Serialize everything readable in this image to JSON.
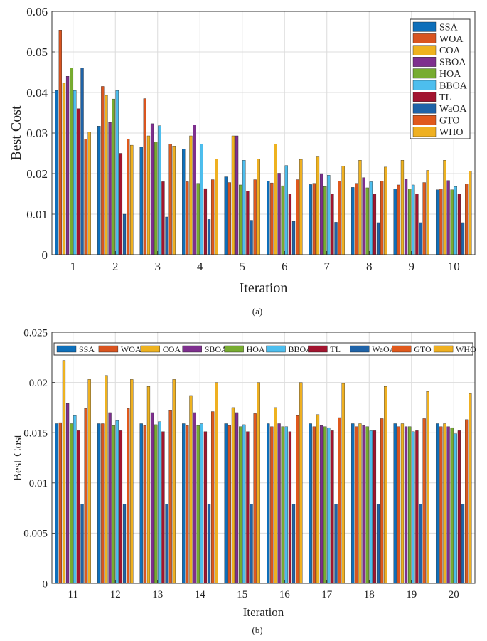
{
  "colors": {
    "SSA": "#0e6fba",
    "WOA": "#d9541f",
    "COA": "#eeb21f",
    "SBOA": "#7e2f8e",
    "HOA": "#77ac30",
    "BBOA": "#4dbeee",
    "TL": "#a2142f",
    "WaOA": "#1f63a8",
    "GTO": "#e0591c",
    "WHO": "#efb021"
  },
  "chart_data": [
    {
      "type": "bar",
      "caption": "(a)",
      "xlabel": "Iteration",
      "ylabel": "Best Cost",
      "ylim": [
        0,
        0.06
      ],
      "yticks": [
        "0",
        "0.01",
        "0.02",
        "0.03",
        "0.04",
        "0.05",
        "0.06"
      ],
      "grid": true,
      "legend_position": "top-right",
      "legend_layout": "vertical",
      "categories": [
        "1",
        "2",
        "3",
        "4",
        "5",
        "6",
        "7",
        "8",
        "9",
        "10"
      ],
      "series": [
        {
          "name": "SSA",
          "values": [
            0.0405,
            0.0317,
            0.0265,
            0.026,
            0.0192,
            0.0182,
            0.0173,
            0.0166,
            0.0162,
            0.016
          ]
        },
        {
          "name": "WOA",
          "values": [
            0.0554,
            0.0415,
            0.0385,
            0.018,
            0.0178,
            0.0177,
            0.0176,
            0.0176,
            0.0172,
            0.0162
          ]
        },
        {
          "name": "COA",
          "values": [
            0.0423,
            0.0393,
            0.0293,
            0.0293,
            0.0293,
            0.0273,
            0.0243,
            0.0233,
            0.0233,
            0.0233
          ]
        },
        {
          "name": "SBOA",
          "values": [
            0.044,
            0.0326,
            0.0323,
            0.032,
            0.0293,
            0.0201,
            0.02,
            0.019,
            0.0186,
            0.0183
          ]
        },
        {
          "name": "HOA",
          "values": [
            0.0461,
            0.0384,
            0.0278,
            0.0176,
            0.0172,
            0.017,
            0.0168,
            0.0165,
            0.0162,
            0.016
          ]
        },
        {
          "name": "BBOA",
          "values": [
            0.0405,
            0.0405,
            0.0318,
            0.0273,
            0.0233,
            0.022,
            0.0196,
            0.018,
            0.0172,
            0.0168
          ]
        },
        {
          "name": "TL",
          "values": [
            0.036,
            0.025,
            0.018,
            0.0163,
            0.0157,
            0.015,
            0.015,
            0.015,
            0.015,
            0.015
          ]
        },
        {
          "name": "WaOA",
          "values": [
            0.046,
            0.01,
            0.0093,
            0.0087,
            0.0085,
            0.0082,
            0.008,
            0.0079,
            0.0079,
            0.0079
          ]
        },
        {
          "name": "GTO",
          "values": [
            0.0285,
            0.0285,
            0.0273,
            0.0185,
            0.0185,
            0.0185,
            0.0182,
            0.0182,
            0.0178,
            0.0175
          ]
        },
        {
          "name": "WHO",
          "values": [
            0.0302,
            0.027,
            0.0268,
            0.0236,
            0.0236,
            0.0235,
            0.0218,
            0.0216,
            0.0208,
            0.0206
          ]
        }
      ]
    },
    {
      "type": "bar",
      "caption": "(b)",
      "xlabel": "Iteration",
      "ylabel": "Best Cost",
      "ylim": [
        0,
        0.025
      ],
      "yticks": [
        "0",
        "0.005",
        "0.01",
        "0.015",
        "0.02",
        "0.025"
      ],
      "grid": true,
      "legend_position": "top",
      "legend_layout": "horizontal",
      "categories": [
        "11",
        "12",
        "13",
        "14",
        "15",
        "16",
        "17",
        "18",
        "19",
        "20"
      ],
      "series": [
        {
          "name": "SSA",
          "values": [
            0.0159,
            0.0159,
            0.0159,
            0.0159,
            0.0159,
            0.0159,
            0.0159,
            0.0159,
            0.0159,
            0.0159
          ]
        },
        {
          "name": "WOA",
          "values": [
            0.016,
            0.0159,
            0.0157,
            0.0157,
            0.0157,
            0.0156,
            0.0156,
            0.0156,
            0.0156,
            0.0156
          ]
        },
        {
          "name": "COA",
          "values": [
            0.0222,
            0.0207,
            0.0196,
            0.0187,
            0.0175,
            0.0175,
            0.0168,
            0.0159,
            0.0159,
            0.0159
          ]
        },
        {
          "name": "SBOA",
          "values": [
            0.0179,
            0.017,
            0.017,
            0.017,
            0.017,
            0.0159,
            0.0157,
            0.0157,
            0.0156,
            0.0156
          ]
        },
        {
          "name": "HOA",
          "values": [
            0.0159,
            0.0157,
            0.0158,
            0.0157,
            0.0156,
            0.0156,
            0.0156,
            0.0156,
            0.0156,
            0.0155
          ]
        },
        {
          "name": "BBOA",
          "values": [
            0.0167,
            0.0162,
            0.0161,
            0.0159,
            0.0158,
            0.0156,
            0.0155,
            0.0152,
            0.0151,
            0.0149
          ]
        },
        {
          "name": "TL",
          "values": [
            0.0152,
            0.0152,
            0.0151,
            0.0151,
            0.0151,
            0.0151,
            0.0152,
            0.0152,
            0.0152,
            0.0152
          ]
        },
        {
          "name": "WaOA",
          "values": [
            0.0079,
            0.0079,
            0.0079,
            0.0079,
            0.0079,
            0.0079,
            0.0079,
            0.0079,
            0.0079,
            0.0079
          ]
        },
        {
          "name": "GTO",
          "values": [
            0.0174,
            0.0174,
            0.0172,
            0.0171,
            0.0169,
            0.0167,
            0.0165,
            0.0164,
            0.0164,
            0.0163
          ]
        },
        {
          "name": "WHO",
          "values": [
            0.0203,
            0.0203,
            0.0203,
            0.02,
            0.02,
            0.02,
            0.0199,
            0.0196,
            0.0191,
            0.0189
          ]
        }
      ]
    }
  ]
}
